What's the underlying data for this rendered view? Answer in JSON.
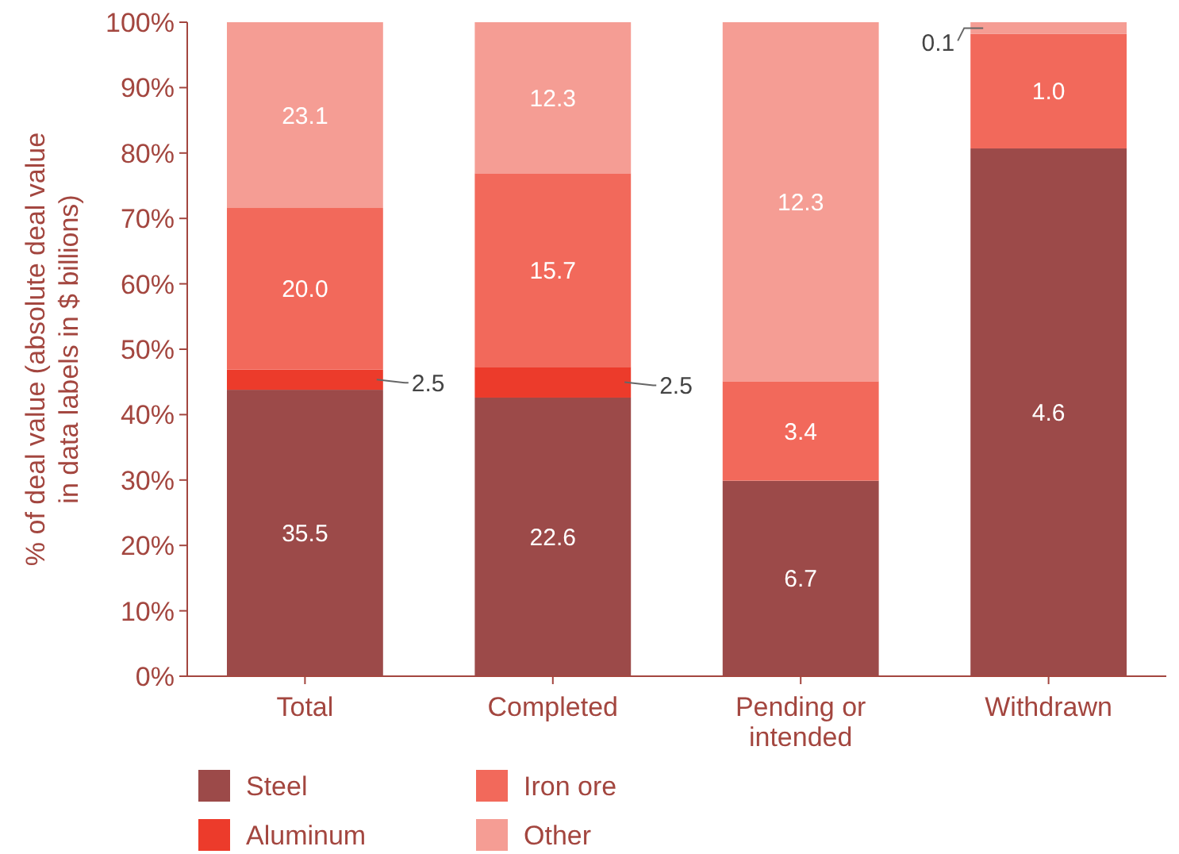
{
  "chart_data": {
    "type": "bar",
    "stacked": true,
    "ylabel": "% of deal value (absolute deal value in data labels in $ billions)",
    "categories": [
      "Total",
      "Completed",
      "Pending or intended",
      "Withdrawn"
    ],
    "series": [
      {
        "name": "Steel",
        "color": "#9c4a49",
        "values": [
          43.8,
          42.6,
          29.9,
          80.7
        ]
      },
      {
        "name": "Aluminum",
        "color": "#ec3b2b",
        "values": [
          3.1,
          4.7,
          0,
          0
        ]
      },
      {
        "name": "Iron ore",
        "color": "#f2695b",
        "values": [
          24.7,
          29.6,
          15.2,
          17.5
        ]
      },
      {
        "name": "Other",
        "color": "#f59d94",
        "values": [
          28.4,
          23.1,
          54.9,
          1.8
        ]
      }
    ],
    "annotations": [
      "35.5",
      "2.5",
      "20.0",
      "23.1",
      "22.6",
      "2.5",
      "15.7",
      "12.3",
      "6.7",
      "3.4",
      "12.3",
      "4.6",
      "1.0",
      "0.1"
    ],
    "ylim": [
      0,
      100
    ],
    "yticks": [
      {
        "value": 0,
        "label": "0%"
      },
      {
        "value": 10,
        "label": "10%"
      },
      {
        "value": 20,
        "label": "20%"
      },
      {
        "value": 30,
        "label": "30%"
      },
      {
        "value": 40,
        "label": "40%"
      },
      {
        "value": 50,
        "label": "50%"
      },
      {
        "value": 60,
        "label": "60%"
      },
      {
        "value": 70,
        "label": "70%"
      },
      {
        "value": 80,
        "label": "80%"
      },
      {
        "value": 90,
        "label": "90%"
      },
      {
        "value": 100,
        "label": "100%"
      }
    ],
    "legend": "bottom",
    "grid": false
  }
}
